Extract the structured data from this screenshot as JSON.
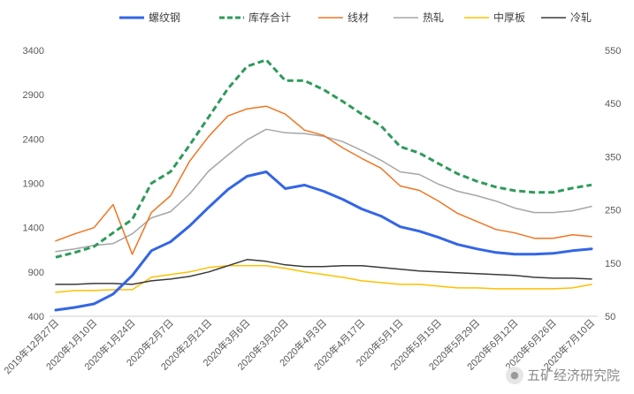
{
  "chart_data": {
    "type": "line",
    "title": "",
    "xlabel": "",
    "ylabel": "",
    "x": [
      "2019年12月27日",
      "2020年1月3日",
      "2020年1月10日",
      "2020年1月17日",
      "2020年1月24日",
      "2020年1月31日",
      "2020年2月7日",
      "2020年2月14日",
      "2020年2月21日",
      "2020年2月28日",
      "2020年3月6日",
      "2020年3月13日",
      "2020年3月20日",
      "2020年3月27日",
      "2020年4月3日",
      "2020年4月10日",
      "2020年4月17日",
      "2020年4月24日",
      "2020年5月1日",
      "2020年5月8日",
      "2020年5月15日",
      "2020年5月22日",
      "2020年5月29日",
      "2020年6月5日",
      "2020年6月12日",
      "2020年6月19日",
      "2020年6月26日",
      "2020年7月3日",
      "2020年7月10日"
    ],
    "xticks": [
      "2019年12月27日",
      "2020年1月10日",
      "2020年1月24日",
      "2020年2月7日",
      "2020年2月21日",
      "2020年3月6日",
      "2020年3月20日",
      "2020年4月3日",
      "2020年4月17日",
      "2020年5月1日",
      "2020年5月15日",
      "2020年5月29日",
      "2020年6月12日",
      "2020年6月26日",
      "2020年7月10日"
    ],
    "ylim": [
      400,
      3400
    ],
    "yticks": [
      400,
      900,
      1400,
      1900,
      2400,
      2900,
      3400
    ],
    "y2lim": [
      50,
      550
    ],
    "y2ticks": [
      50,
      150,
      250,
      350,
      450,
      550
    ],
    "legend_position": "top",
    "grid": false,
    "series": [
      {
        "name": "螺纹钢",
        "axis": "left",
        "style": "solid",
        "color": "#3366e6",
        "width": 3,
        "values": [
          470,
          500,
          540,
          650,
          860,
          1140,
          1240,
          1420,
          1630,
          1830,
          1980,
          2030,
          1840,
          1880,
          1810,
          1720,
          1610,
          1530,
          1410,
          1360,
          1290,
          1210,
          1160,
          1120,
          1100,
          1100,
          1110,
          1140,
          1160
        ]
      },
      {
        "name": "库存合计",
        "axis": "right",
        "style": "dashed",
        "color": "#2e9a5a",
        "width": 3,
        "values": [
          161,
          170,
          181,
          207,
          232,
          300,
          322,
          372,
          425,
          478,
          520,
          532,
          493,
          493,
          476,
          454,
          430,
          408,
          369,
          357,
          337,
          318,
          304,
          293,
          286,
          283,
          283,
          291,
          297
        ]
      },
      {
        "name": "线材",
        "axis": "left",
        "style": "solid",
        "color": "#f07522",
        "width": 1.5,
        "values": [
          1250,
          1330,
          1400,
          1660,
          1100,
          1570,
          1760,
          2150,
          2430,
          2660,
          2740,
          2770,
          2680,
          2500,
          2440,
          2300,
          2180,
          2070,
          1870,
          1820,
          1700,
          1560,
          1470,
          1380,
          1340,
          1280,
          1280,
          1320,
          1300
        ]
      },
      {
        "name": "热轧",
        "axis": "left",
        "style": "solid",
        "color": "#a6a6a6",
        "width": 1.5,
        "values": [
          1130,
          1160,
          1200,
          1220,
          1330,
          1510,
          1580,
          1780,
          2040,
          2220,
          2390,
          2510,
          2470,
          2460,
          2430,
          2370,
          2270,
          2160,
          2030,
          2000,
          1890,
          1810,
          1760,
          1700,
          1620,
          1570,
          1570,
          1590,
          1640
        ]
      },
      {
        "name": "中厚板",
        "axis": "left",
        "style": "solid",
        "color": "#ffc000",
        "width": 1.5,
        "values": [
          670,
          690,
          690,
          700,
          700,
          840,
          870,
          900,
          950,
          970,
          970,
          970,
          940,
          900,
          870,
          840,
          800,
          780,
          760,
          760,
          740,
          720,
          720,
          710,
          710,
          710,
          710,
          720,
          760
        ]
      },
      {
        "name": "冷轧",
        "axis": "left",
        "style": "solid",
        "color": "#3a3a3a",
        "width": 1.5,
        "values": [
          760,
          760,
          770,
          770,
          760,
          800,
          820,
          850,
          900,
          970,
          1040,
          1020,
          980,
          960,
          960,
          970,
          970,
          950,
          930,
          910,
          900,
          890,
          880,
          870,
          860,
          840,
          830,
          830,
          820
        ]
      }
    ]
  },
  "watermark": {
    "icon": "wechat-icon",
    "text": "五矿经济研究院"
  }
}
